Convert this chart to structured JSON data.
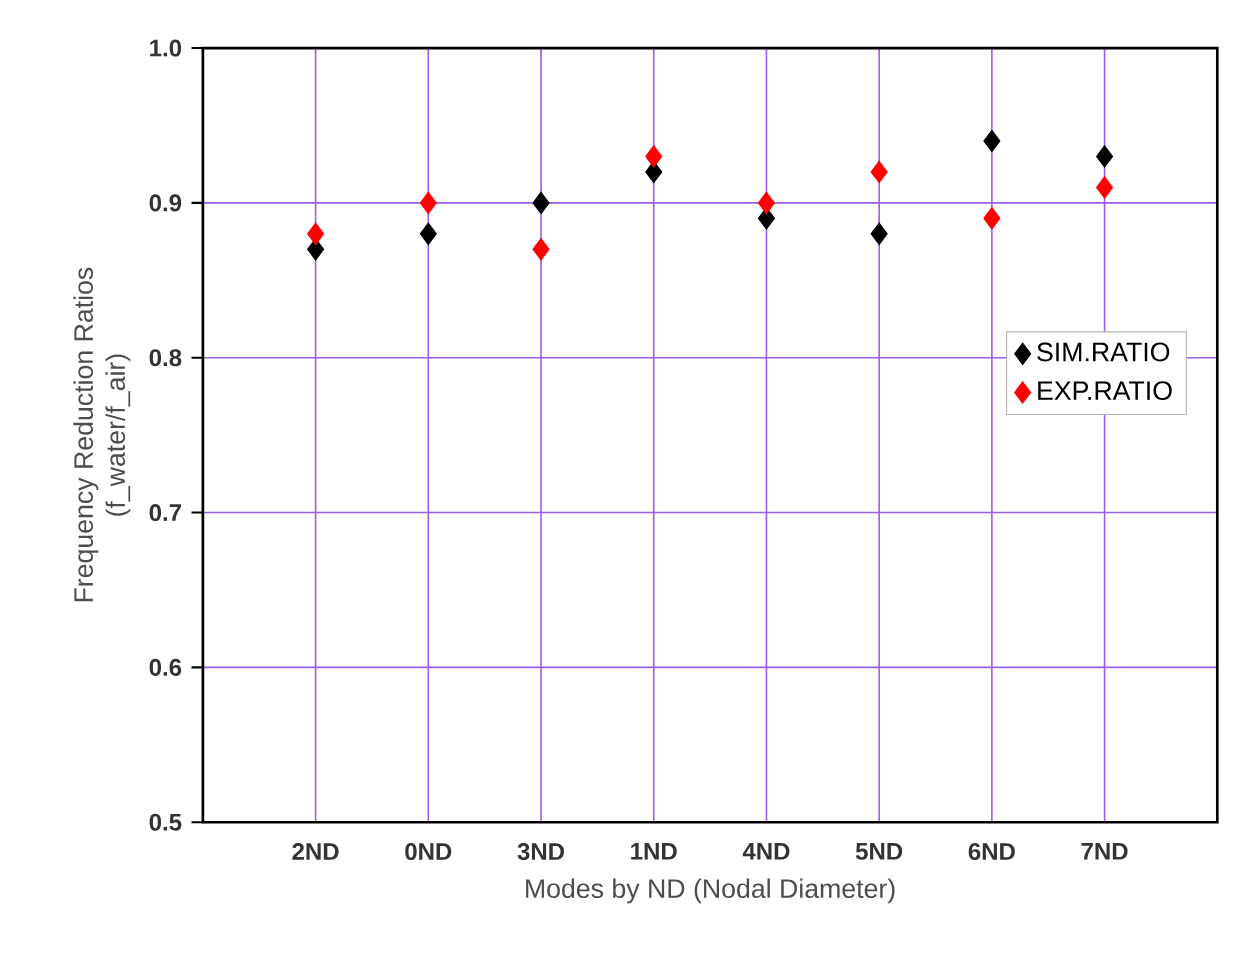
{
  "chart_data": {
    "type": "scatter",
    "xlabel": "Modes by ND (Nodal Diameter)",
    "ylabel": "Frequency Reduction Ratios\n(f_water/f_air)",
    "categories": [
      "2ND",
      "0ND",
      "3ND",
      "1ND",
      "4ND",
      "5ND",
      "6ND",
      "7ND"
    ],
    "series": [
      {
        "name": "SIM.RATIO",
        "color": "#000000",
        "values": [
          0.87,
          0.88,
          0.9,
          0.92,
          0.89,
          0.88,
          0.94,
          0.93
        ]
      },
      {
        "name": "EXP.RATIO",
        "color": "#ff0000",
        "values": [
          0.88,
          0.9,
          0.87,
          0.93,
          0.9,
          0.92,
          0.89,
          0.91
        ]
      }
    ],
    "ylim": [
      0.5,
      1.0
    ],
    "yticks": [
      0.5,
      0.6,
      0.7,
      0.8,
      0.9,
      {
        "value": 1.0,
        "label": "1.0"
      }
    ],
    "grid": true,
    "legend": "right",
    "marker": "diamond"
  }
}
